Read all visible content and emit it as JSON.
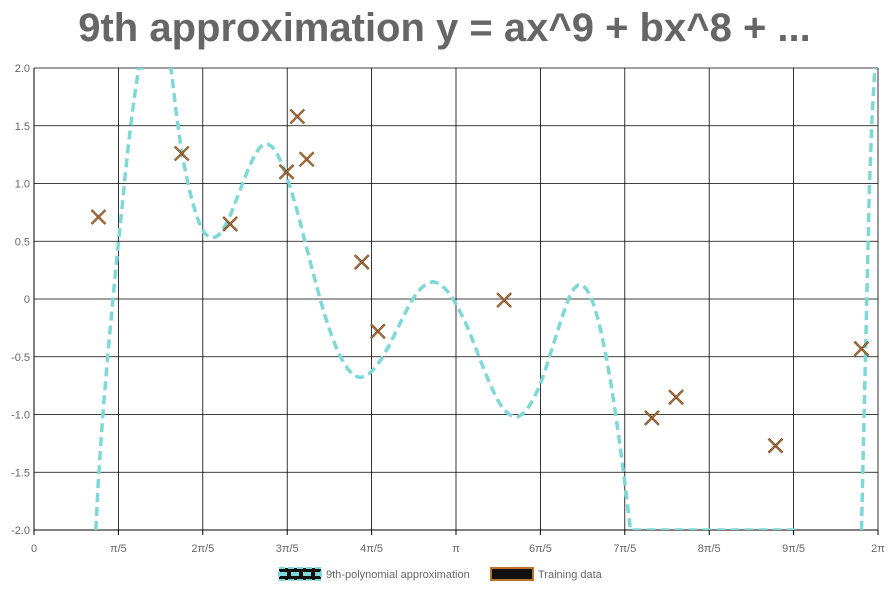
{
  "chart_data": {
    "type": "line",
    "title": "9th approximation y = ax^9 + bx^8 + ...",
    "xlim": [
      0,
      6.2832
    ],
    "ylim": [
      -2.0,
      2.0
    ],
    "grid": true,
    "legend_position": "bottom",
    "x_ticks": [
      {
        "value": 0,
        "label": "0"
      },
      {
        "value": 0.6283,
        "label": "π/5"
      },
      {
        "value": 1.2566,
        "label": "2π/5"
      },
      {
        "value": 1.885,
        "label": "3π/5"
      },
      {
        "value": 2.5133,
        "label": "4π/5"
      },
      {
        "value": 3.1416,
        "label": "π"
      },
      {
        "value": 3.7699,
        "label": "6π/5"
      },
      {
        "value": 4.3982,
        "label": "7π/5"
      },
      {
        "value": 5.0265,
        "label": "8π/5"
      },
      {
        "value": 5.6549,
        "label": "9π/5"
      },
      {
        "value": 6.2832,
        "label": "2π"
      }
    ],
    "y_ticks": [
      "2.0",
      "1.5",
      "1.0",
      "0.5",
      "0",
      "-0.5",
      "-1.0",
      "-1.5",
      "-2.0"
    ],
    "series": [
      {
        "name": "9th-polynomial approximation",
        "kind": "line",
        "color": "#7fd8d8",
        "dash": true,
        "x": [
          0.46,
          0.48,
          0.5,
          0.52,
          0.54,
          0.56,
          0.58,
          0.6,
          0.62,
          0.64,
          0.66,
          0.68,
          0.7,
          0.72,
          0.74,
          0.76,
          0.78,
          0.8,
          0.82,
          1.0,
          1.02,
          1.04,
          1.06,
          1.09,
          1.12,
          1.15,
          1.18,
          1.21,
          1.24,
          1.27,
          1.3,
          1.33,
          1.36,
          1.39,
          1.41,
          1.44,
          1.47,
          1.5,
          1.53,
          1.56,
          1.59,
          1.62,
          1.65,
          1.68,
          1.71,
          1.74,
          1.77,
          1.8,
          1.83,
          1.86,
          1.89,
          1.92,
          1.95,
          1.98,
          2.01,
          2.04,
          2.07,
          2.1,
          2.13,
          2.16,
          2.19,
          2.22,
          2.25,
          2.28,
          2.31,
          2.34,
          2.37,
          2.4,
          2.43,
          2.46,
          2.49,
          2.52,
          2.55,
          2.58,
          2.61,
          2.64,
          2.67,
          2.7,
          2.73,
          2.76,
          2.79,
          2.82,
          2.85,
          2.88,
          2.91,
          2.94,
          2.97,
          3.0,
          3.03,
          3.06,
          3.09,
          3.12,
          3.15,
          3.18,
          3.21,
          3.24,
          3.27,
          3.3,
          3.33,
          3.36,
          3.39,
          3.42,
          3.45,
          3.48,
          3.51,
          3.54,
          3.57,
          3.6,
          3.63,
          3.66,
          3.69,
          3.72,
          3.75,
          3.78,
          3.81,
          3.84,
          3.87,
          3.9,
          3.93,
          3.96,
          3.99,
          4.02,
          4.05,
          4.08,
          4.11,
          4.14,
          4.17,
          4.2,
          4.23,
          4.26,
          4.29,
          4.32,
          4.35,
          4.38,
          4.41,
          4.44,
          4.47,
          4.5,
          4.53,
          4.56,
          4.59,
          4.62,
          4.65,
          4.68,
          4.71,
          4.74,
          4.77,
          4.8,
          4.83,
          4.86,
          4.89,
          4.92,
          4.95,
          4.98,
          5.01,
          5.04,
          5.07,
          5.1,
          5.13,
          5.16,
          5.19,
          5.22,
          5.25,
          5.28,
          5.31,
          5.34,
          5.37,
          5.4,
          5.43,
          5.46,
          5.49,
          5.52,
          5.55,
          5.58,
          5.61,
          5.64,
          5.67,
          6.16,
          6.18,
          6.2,
          6.22,
          6.24,
          6.26,
          6.28
        ],
        "y": [
          -2.0,
          -1.55,
          -1.2,
          -0.9,
          -0.62,
          -0.35,
          -0.1,
          0.15,
          0.4,
          0.62,
          0.85,
          1.08,
          1.3,
          1.5,
          1.68,
          1.85,
          2.0,
          2.0,
          2.0,
          2.0,
          2.0,
          1.8,
          1.6,
          1.35,
          1.15,
          0.98,
          0.84,
          0.72,
          0.63,
          0.57,
          0.54,
          0.53,
          0.54,
          0.57,
          0.61,
          0.67,
          0.75,
          0.84,
          0.93,
          1.02,
          1.11,
          1.19,
          1.26,
          1.31,
          1.34,
          1.34,
          1.32,
          1.28,
          1.21,
          1.13,
          1.03,
          0.92,
          0.8,
          0.67,
          0.53,
          0.4,
          0.26,
          0.13,
          0.0,
          -0.12,
          -0.23,
          -0.33,
          -0.42,
          -0.5,
          -0.56,
          -0.61,
          -0.65,
          -0.67,
          -0.68,
          -0.67,
          -0.65,
          -0.62,
          -0.58,
          -0.53,
          -0.47,
          -0.41,
          -0.34,
          -0.27,
          -0.2,
          -0.13,
          -0.06,
          0.0,
          0.05,
          0.09,
          0.12,
          0.14,
          0.15,
          0.14,
          0.12,
          0.09,
          0.05,
          0.0,
          -0.06,
          -0.13,
          -0.2,
          -0.28,
          -0.37,
          -0.46,
          -0.55,
          -0.64,
          -0.72,
          -0.8,
          -0.87,
          -0.93,
          -0.97,
          -1.0,
          -1.02,
          -1.02,
          -1.0,
          -0.97,
          -0.92,
          -0.86,
          -0.79,
          -0.7,
          -0.6,
          -0.49,
          -0.38,
          -0.27,
          -0.16,
          -0.06,
          0.03,
          0.09,
          0.12,
          0.12,
          0.09,
          0.03,
          -0.06,
          -0.18,
          -0.33,
          -0.5,
          -0.7,
          -0.92,
          -1.16,
          -1.42,
          -1.7,
          -2.0,
          -2.0,
          -2.0,
          -2.0,
          -2.0,
          -2.0,
          -2.0,
          -2.0,
          -2.0,
          -2.0,
          -2.0,
          -2.0,
          -2.0,
          -2.0,
          -2.0,
          -2.0,
          -2.0,
          -2.0,
          -2.0,
          -2.0,
          -2.0,
          -2.0,
          -2.0,
          -2.0,
          -2.0,
          -2.0,
          -2.0,
          -2.0,
          -2.0,
          -2.0,
          -2.0,
          -2.0,
          -2.0,
          -2.0,
          -2.0,
          -2.0,
          -2.0,
          -2.0,
          -2.0,
          -2.0,
          -2.0,
          -2.0,
          -2.0,
          -1.0,
          0.0,
          1.0,
          1.6,
          2.0,
          2.0
        ]
      },
      {
        "name": "Training data",
        "kind": "scatter",
        "marker": "x",
        "color": "#b87333",
        "x": [
          0.48,
          1.1,
          1.46,
          1.88,
          1.96,
          2.03,
          2.44,
          2.56,
          3.5,
          4.6,
          4.78,
          5.52,
          6.16
        ],
        "y": [
          0.71,
          1.26,
          0.65,
          1.1,
          1.58,
          1.21,
          0.32,
          -0.28,
          -0.01,
          -1.03,
          -0.85,
          -1.27,
          -0.43
        ]
      }
    ]
  }
}
